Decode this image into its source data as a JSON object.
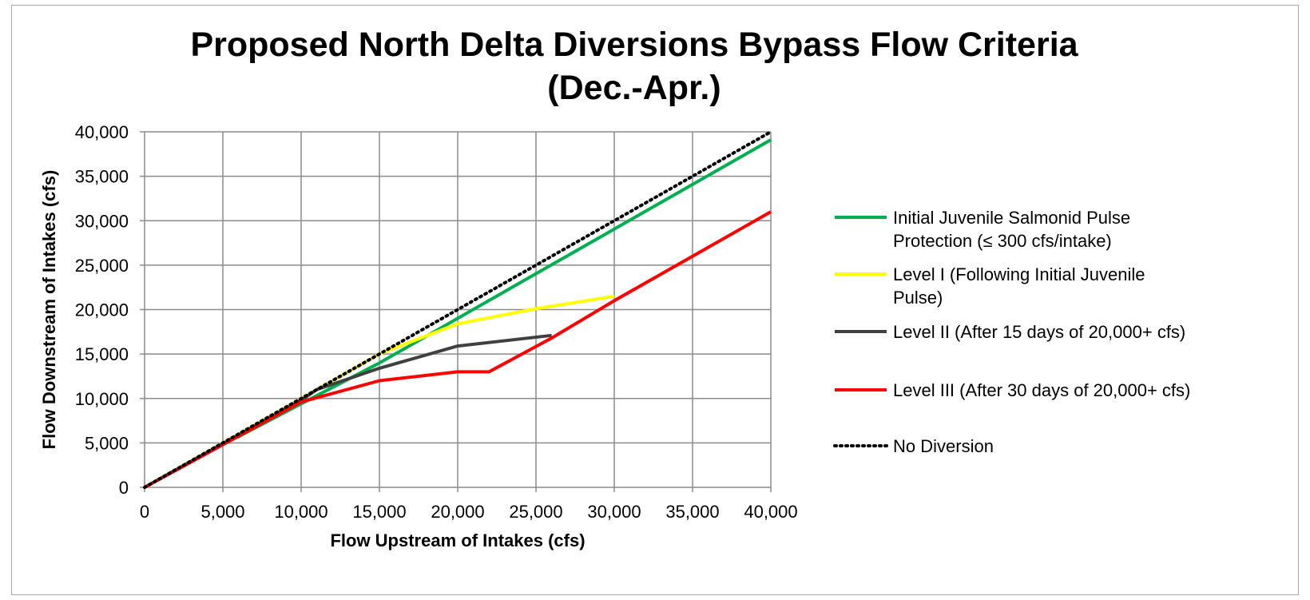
{
  "chart_data": {
    "type": "line",
    "title": [
      "Proposed North Delta Diversions Bypass Flow Criteria",
      "(Dec.-Apr.)"
    ],
    "xlabel": "Flow Upstream of Intakes (cfs)",
    "ylabel": "Flow Downstream of Intakes (cfs)",
    "xlim": [
      0,
      40000
    ],
    "ylim": [
      0,
      40000
    ],
    "x_ticks": [
      "0",
      "5,000",
      "10,000",
      "15,000",
      "20,000",
      "25,000",
      "30,000",
      "35,000",
      "40,000"
    ],
    "y_ticks": [
      "0",
      "5,000",
      "10,000",
      "15,000",
      "20,000",
      "25,000",
      "30,000",
      "35,000",
      "40,000"
    ],
    "grid": true,
    "legend_position": "right",
    "series": [
      {
        "name": [
          "Initial Juvenile Salmonid Pulse",
          "Protection (≤ 300 cfs/intake)"
        ],
        "color": "#00b050",
        "style": "solid",
        "points": [
          [
            0,
            0
          ],
          [
            5000,
            5000
          ],
          [
            6000,
            5700
          ],
          [
            10000,
            9400
          ],
          [
            15000,
            14000
          ],
          [
            40000,
            39100
          ]
        ]
      },
      {
        "name": [
          "Level I (Following Initial Juvenile",
          "Pulse)"
        ],
        "color": "#ffff00",
        "style": "solid",
        "points": [
          [
            0,
            0
          ],
          [
            10000,
            10000
          ],
          [
            15000,
            15000
          ],
          [
            20000,
            18400
          ],
          [
            25000,
            20100
          ],
          [
            30000,
            21500
          ]
        ]
      },
      {
        "name": [
          "Level II (After 15 days of 20,000+ cfs)"
        ],
        "color": "#404040",
        "style": "solid",
        "points": [
          [
            0,
            0
          ],
          [
            10000,
            9800
          ],
          [
            11000,
            11000
          ],
          [
            15000,
            13400
          ],
          [
            20000,
            15900
          ],
          [
            26000,
            17100
          ]
        ]
      },
      {
        "name": [
          "Level III (After 30 days of 20,000+ cfs)"
        ],
        "color": "#ff0000",
        "style": "solid",
        "points": [
          [
            0,
            0
          ],
          [
            10000,
            9600
          ],
          [
            15000,
            12000
          ],
          [
            20000,
            13000
          ],
          [
            22000,
            13000
          ],
          [
            26000,
            16800
          ],
          [
            30000,
            21000
          ],
          [
            40000,
            31000
          ]
        ]
      },
      {
        "name": [
          "No Diversion"
        ],
        "color": "#000000",
        "style": "dotted",
        "points": [
          [
            0,
            0
          ],
          [
            40000,
            40000
          ]
        ]
      }
    ]
  }
}
